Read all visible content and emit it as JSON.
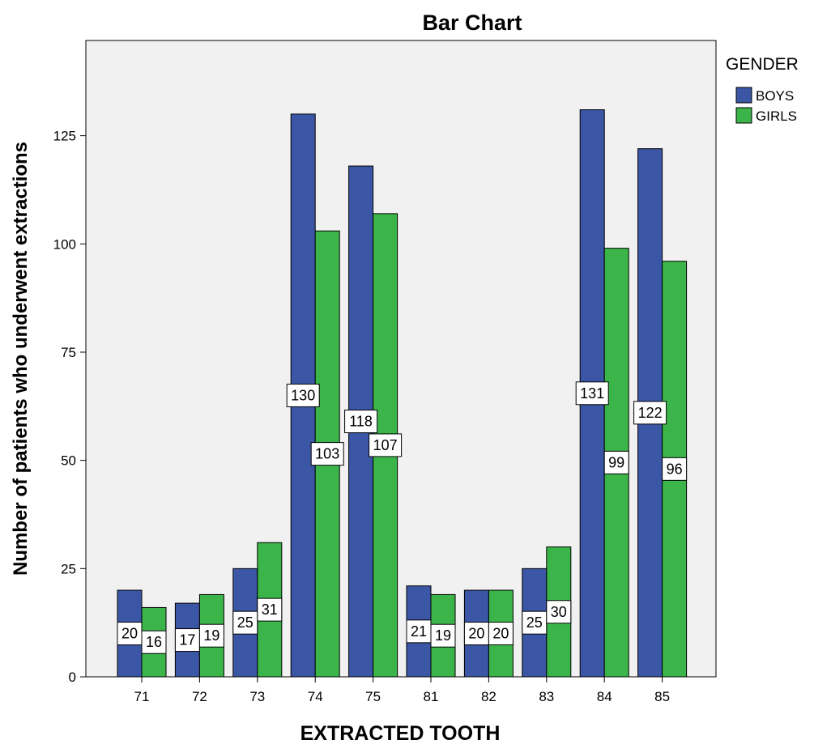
{
  "chart_data": {
    "type": "bar",
    "title": "Bar Chart",
    "xlabel": "EXTRACTED TOOTH",
    "ylabel": "Number of patients who underwent extractions",
    "categories": [
      "71",
      "72",
      "73",
      "74",
      "75",
      "81",
      "82",
      "83",
      "84",
      "85"
    ],
    "series": [
      {
        "name": "BOYS",
        "color": "#3c56a6",
        "values": [
          20,
          17,
          25,
          130,
          118,
          21,
          20,
          25,
          131,
          122
        ]
      },
      {
        "name": "GIRLS",
        "color": "#3bb54a",
        "values": [
          16,
          19,
          31,
          103,
          107,
          19,
          20,
          30,
          99,
          96
        ]
      }
    ],
    "ylim": [
      0,
      147
    ],
    "yticks": [
      0,
      25,
      50,
      75,
      100,
      125
    ],
    "grid": false,
    "legend": {
      "title": "GENDER",
      "position": "right"
    },
    "plot_background": "#f0f1f0",
    "data_labels": true
  }
}
